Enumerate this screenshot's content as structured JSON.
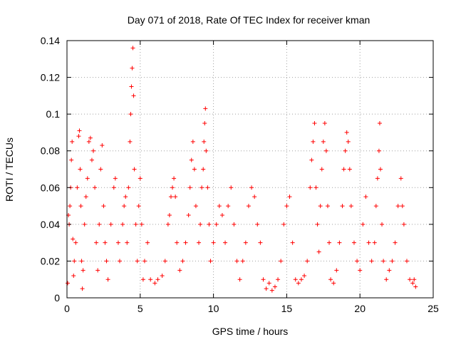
{
  "chart_data": {
    "type": "scatter",
    "title": "Day 071 of 2018, Rate Of TEC Index for receiver kman",
    "xlabel": "GPS time / hours",
    "ylabel": "ROTI / TECUs",
    "xlim": [
      0,
      25
    ],
    "ylim": [
      0,
      0.14
    ],
    "xticks": [
      0,
      5,
      10,
      15,
      20,
      25
    ],
    "xtick_labels": [
      "0",
      "5",
      "10",
      "15",
      "20",
      "25"
    ],
    "yticks": [
      0,
      0.02,
      0.04,
      0.06,
      0.08,
      0.1,
      0.12,
      0.14
    ],
    "ytick_labels": [
      "0",
      "0.02",
      "0.04",
      "0.06",
      "0.08",
      "0.1",
      "0.12",
      "0.14"
    ],
    "grid": true,
    "marker": "+",
    "color": "#ff0000",
    "series": [
      {
        "name": "ROTI",
        "points": [
          [
            0.05,
            0.008
          ],
          [
            0.1,
            0.045
          ],
          [
            0.15,
            0.04
          ],
          [
            0.2,
            0.05
          ],
          [
            0.25,
            0.06
          ],
          [
            0.3,
            0.075
          ],
          [
            0.35,
            0.085
          ],
          [
            0.4,
            0.032
          ],
          [
            0.45,
            0.012
          ],
          [
            0.5,
            0.02
          ],
          [
            0.6,
            0.03
          ],
          [
            0.7,
            0.06
          ],
          [
            0.8,
            0.088
          ],
          [
            0.85,
            0.091
          ],
          [
            0.9,
            0.07
          ],
          [
            0.95,
            0.05
          ],
          [
            1.0,
            0.02
          ],
          [
            1.05,
            0.005
          ],
          [
            1.1,
            0.015
          ],
          [
            1.2,
            0.04
          ],
          [
            1.3,
            0.055
          ],
          [
            1.4,
            0.065
          ],
          [
            1.5,
            0.085
          ],
          [
            1.6,
            0.087
          ],
          [
            1.7,
            0.075
          ],
          [
            1.8,
            0.08
          ],
          [
            1.9,
            0.06
          ],
          [
            2.0,
            0.03
          ],
          [
            2.1,
            0.015
          ],
          [
            2.2,
            0.04
          ],
          [
            2.3,
            0.07
          ],
          [
            2.4,
            0.083
          ],
          [
            2.5,
            0.05
          ],
          [
            2.6,
            0.03
          ],
          [
            2.7,
            0.02
          ],
          [
            2.8,
            0.01
          ],
          [
            3.0,
            0.04
          ],
          [
            3.2,
            0.06
          ],
          [
            3.3,
            0.065
          ],
          [
            3.5,
            0.03
          ],
          [
            3.6,
            0.02
          ],
          [
            3.8,
            0.04
          ],
          [
            3.9,
            0.05
          ],
          [
            4.0,
            0.055
          ],
          [
            4.1,
            0.03
          ],
          [
            4.2,
            0.06
          ],
          [
            4.3,
            0.085
          ],
          [
            4.35,
            0.1
          ],
          [
            4.4,
            0.115
          ],
          [
            4.45,
            0.125
          ],
          [
            4.5,
            0.136
          ],
          [
            4.55,
            0.11
          ],
          [
            4.6,
            0.07
          ],
          [
            4.7,
            0.04
          ],
          [
            4.8,
            0.02
          ],
          [
            4.9,
            0.05
          ],
          [
            5.0,
            0.065
          ],
          [
            5.1,
            0.04
          ],
          [
            5.2,
            0.01
          ],
          [
            5.3,
            0.02
          ],
          [
            5.5,
            0.03
          ],
          [
            5.7,
            0.01
          ],
          [
            6.0,
            0.008
          ],
          [
            6.2,
            0.01
          ],
          [
            6.5,
            0.012
          ],
          [
            6.7,
            0.02
          ],
          [
            6.9,
            0.04
          ],
          [
            7.0,
            0.045
          ],
          [
            7.1,
            0.055
          ],
          [
            7.2,
            0.06
          ],
          [
            7.3,
            0.065
          ],
          [
            7.4,
            0.055
          ],
          [
            7.5,
            0.03
          ],
          [
            7.7,
            0.015
          ],
          [
            7.9,
            0.02
          ],
          [
            8.1,
            0.03
          ],
          [
            8.3,
            0.045
          ],
          [
            8.4,
            0.06
          ],
          [
            8.5,
            0.075
          ],
          [
            8.6,
            0.085
          ],
          [
            8.7,
            0.07
          ],
          [
            8.8,
            0.05
          ],
          [
            9.0,
            0.03
          ],
          [
            9.1,
            0.04
          ],
          [
            9.2,
            0.06
          ],
          [
            9.3,
            0.07
          ],
          [
            9.35,
            0.085
          ],
          [
            9.4,
            0.095
          ],
          [
            9.45,
            0.103
          ],
          [
            9.5,
            0.08
          ],
          [
            9.6,
            0.06
          ],
          [
            9.7,
            0.04
          ],
          [
            9.8,
            0.02
          ],
          [
            10.0,
            0.03
          ],
          [
            10.2,
            0.04
          ],
          [
            10.4,
            0.05
          ],
          [
            10.6,
            0.045
          ],
          [
            10.8,
            0.03
          ],
          [
            11.0,
            0.05
          ],
          [
            11.2,
            0.06
          ],
          [
            11.4,
            0.04
          ],
          [
            11.6,
            0.02
          ],
          [
            11.8,
            0.01
          ],
          [
            12.0,
            0.02
          ],
          [
            12.2,
            0.03
          ],
          [
            12.4,
            0.05
          ],
          [
            12.6,
            0.06
          ],
          [
            12.8,
            0.055
          ],
          [
            13.0,
            0.04
          ],
          [
            13.2,
            0.03
          ],
          [
            13.4,
            0.01
          ],
          [
            13.6,
            0.005
          ],
          [
            13.8,
            0.008
          ],
          [
            14.0,
            0.004
          ],
          [
            14.2,
            0.006
          ],
          [
            14.4,
            0.01
          ],
          [
            14.6,
            0.02
          ],
          [
            14.8,
            0.04
          ],
          [
            15.0,
            0.05
          ],
          [
            15.2,
            0.055
          ],
          [
            15.4,
            0.03
          ],
          [
            15.6,
            0.01
          ],
          [
            15.8,
            0.008
          ],
          [
            16.0,
            0.01
          ],
          [
            16.2,
            0.012
          ],
          [
            16.4,
            0.02
          ],
          [
            16.6,
            0.06
          ],
          [
            16.7,
            0.075
          ],
          [
            16.8,
            0.085
          ],
          [
            16.9,
            0.095
          ],
          [
            17.0,
            0.06
          ],
          [
            17.1,
            0.04
          ],
          [
            17.2,
            0.025
          ],
          [
            17.3,
            0.05
          ],
          [
            17.4,
            0.07
          ],
          [
            17.5,
            0.085
          ],
          [
            17.6,
            0.095
          ],
          [
            17.7,
            0.08
          ],
          [
            17.8,
            0.05
          ],
          [
            17.9,
            0.03
          ],
          [
            18.0,
            0.01
          ],
          [
            18.2,
            0.008
          ],
          [
            18.4,
            0.015
          ],
          [
            18.6,
            0.03
          ],
          [
            18.8,
            0.05
          ],
          [
            18.9,
            0.07
          ],
          [
            19.0,
            0.08
          ],
          [
            19.1,
            0.09
          ],
          [
            19.2,
            0.085
          ],
          [
            19.3,
            0.07
          ],
          [
            19.4,
            0.05
          ],
          [
            19.6,
            0.03
          ],
          [
            19.8,
            0.02
          ],
          [
            20.0,
            0.015
          ],
          [
            20.2,
            0.04
          ],
          [
            20.4,
            0.055
          ],
          [
            20.6,
            0.03
          ],
          [
            20.8,
            0.02
          ],
          [
            21.0,
            0.03
          ],
          [
            21.1,
            0.05
          ],
          [
            21.2,
            0.065
          ],
          [
            21.3,
            0.08
          ],
          [
            21.35,
            0.095
          ],
          [
            21.4,
            0.07
          ],
          [
            21.5,
            0.04
          ],
          [
            21.6,
            0.02
          ],
          [
            21.8,
            0.01
          ],
          [
            22.0,
            0.015
          ],
          [
            22.2,
            0.02
          ],
          [
            22.4,
            0.03
          ],
          [
            22.6,
            0.05
          ],
          [
            22.8,
            0.065
          ],
          [
            22.9,
            0.05
          ],
          [
            23.0,
            0.04
          ],
          [
            23.2,
            0.02
          ],
          [
            23.4,
            0.01
          ],
          [
            23.6,
            0.008
          ],
          [
            23.7,
            0.01
          ],
          [
            23.8,
            0.006
          ]
        ]
      }
    ]
  }
}
